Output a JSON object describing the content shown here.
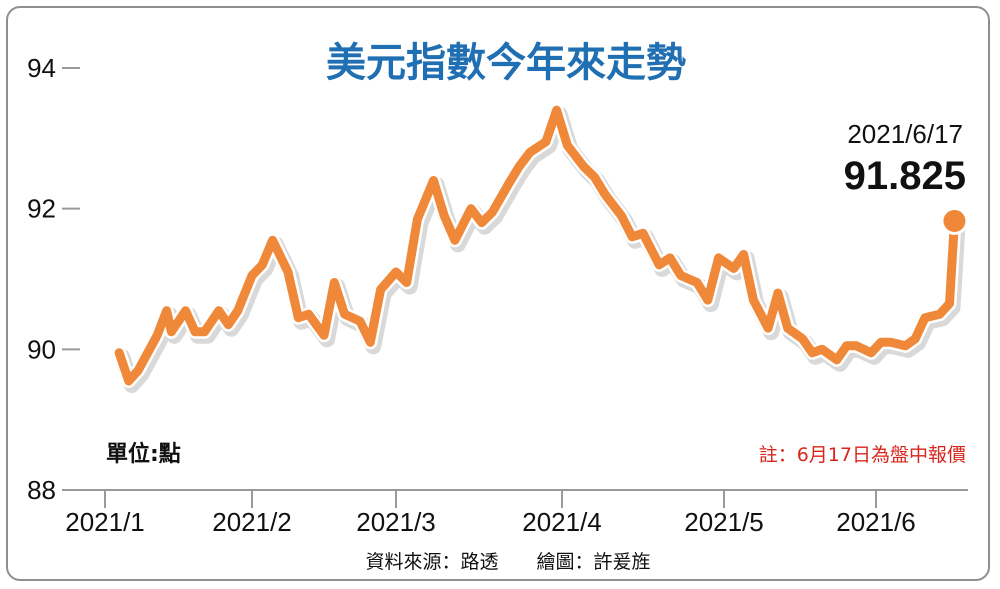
{
  "chart_data": {
    "type": "line",
    "title": "美元指數今年來走勢",
    "unit_label": "單位:點",
    "note": "註：6月17日為盤中報價",
    "source": "資料來源：路透　　繪圖：許爰旌",
    "ylim": [
      88,
      94
    ],
    "yticks": [
      "94",
      "92",
      "90",
      "88"
    ],
    "xticks": [
      "2021/1",
      "2021/2",
      "2021/3",
      "2021/4",
      "2021/5",
      "2021/6"
    ],
    "annotation": {
      "date": "2021/6/17",
      "value": "91.825"
    },
    "colors": {
      "line": "#f0883a",
      "title": "#1f6fb2",
      "note": "#d8261c"
    },
    "series": [
      {
        "x": [
          "2021-01-04",
          "2021-01-06",
          "2021-01-08",
          "2021-01-12",
          "2021-01-14",
          "2021-01-15",
          "2021-01-18",
          "2021-01-20",
          "2021-01-22",
          "2021-01-25",
          "2021-01-27",
          "2021-01-29",
          "2021-02-01",
          "2021-02-03",
          "2021-02-05",
          "2021-02-08",
          "2021-02-10",
          "2021-02-12",
          "2021-02-15",
          "2021-02-17",
          "2021-02-19",
          "2021-02-22",
          "2021-02-24",
          "2021-02-26",
          "2021-03-01",
          "2021-03-03",
          "2021-03-05",
          "2021-03-08",
          "2021-03-10",
          "2021-03-12",
          "2021-03-15",
          "2021-03-17",
          "2021-03-19",
          "2021-03-22",
          "2021-03-24",
          "2021-03-26",
          "2021-03-29",
          "2021-03-31",
          "2021-04-02",
          "2021-04-05",
          "2021-04-07",
          "2021-04-09",
          "2021-04-12",
          "2021-04-14",
          "2021-04-16",
          "2021-04-19",
          "2021-04-21",
          "2021-04-23",
          "2021-04-26",
          "2021-04-28",
          "2021-04-30",
          "2021-05-03",
          "2021-05-05",
          "2021-05-07",
          "2021-05-10",
          "2021-05-12",
          "2021-05-14",
          "2021-05-17",
          "2021-05-19",
          "2021-05-21",
          "2021-05-24",
          "2021-05-26",
          "2021-05-28",
          "2021-05-31",
          "2021-06-02",
          "2021-06-04",
          "2021-06-07",
          "2021-06-09",
          "2021-06-11",
          "2021-06-14",
          "2021-06-16",
          "2021-06-17"
        ],
        "values": [
          89.95,
          89.55,
          89.7,
          90.2,
          90.55,
          90.25,
          90.55,
          90.25,
          90.25,
          90.55,
          90.35,
          90.55,
          91.05,
          91.2,
          91.55,
          91.1,
          90.45,
          90.5,
          90.2,
          90.95,
          90.5,
          90.4,
          90.1,
          90.85,
          91.1,
          90.95,
          91.85,
          92.4,
          91.9,
          91.55,
          92.0,
          91.8,
          91.95,
          92.35,
          92.6,
          92.8,
          92.95,
          93.4,
          92.9,
          92.6,
          92.45,
          92.2,
          91.9,
          91.6,
          91.65,
          91.2,
          91.3,
          91.05,
          90.95,
          90.7,
          91.3,
          91.15,
          91.35,
          90.7,
          90.3,
          90.8,
          90.3,
          90.15,
          89.95,
          90.0,
          89.85,
          90.05,
          90.05,
          89.95,
          90.1,
          90.1,
          90.05,
          90.15,
          90.45,
          90.5,
          90.65,
          91.825
        ]
      }
    ]
  }
}
